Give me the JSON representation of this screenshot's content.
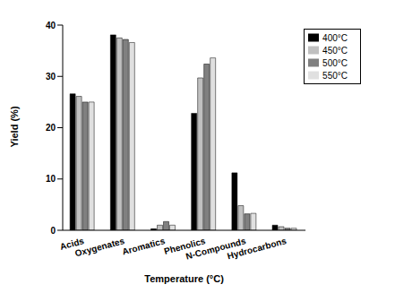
{
  "chart_data": {
    "type": "bar",
    "x_label": "Temperature (°C)",
    "y_label": "Yield (%)",
    "categories": [
      "Acids",
      "Oxygenates",
      "Aromatics",
      "Phenolics",
      "N-Compounds",
      "Hydrocarbons"
    ],
    "series": [
      {
        "name": "400°C",
        "color": "#000000",
        "values": [
          26.6,
          38.1,
          0.3,
          22.8,
          11.2,
          1.0
        ]
      },
      {
        "name": "450°C",
        "color": "#c0c0c0",
        "values": [
          26.1,
          37.5,
          1.0,
          29.7,
          4.8,
          0.7
        ]
      },
      {
        "name": "500°C",
        "color": "#808080",
        "values": [
          25.0,
          37.2,
          1.7,
          32.4,
          3.2,
          0.4
        ]
      },
      {
        "name": "550°C",
        "color": "#e0e0e0",
        "values": [
          25.0,
          36.6,
          1.0,
          33.6,
          3.3,
          0.4
        ]
      }
    ],
    "ylim": [
      0,
      40
    ],
    "yticks": [
      0,
      10,
      20,
      30,
      40
    ],
    "grid": false,
    "legend": "upper right"
  }
}
